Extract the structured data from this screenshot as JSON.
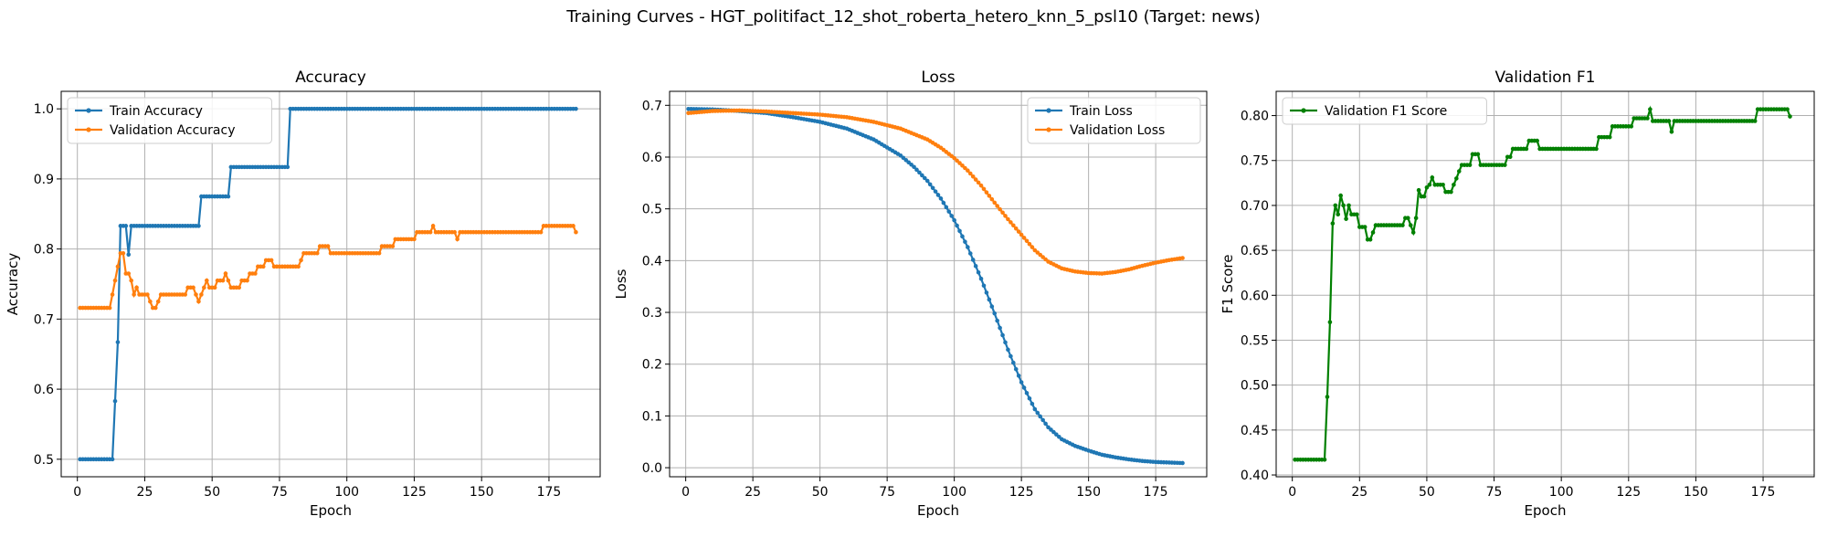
{
  "figure": {
    "title": "Training Curves - HGT_politifact_12_shot_roberta_hetero_knn_5_psl10 (Target: news)"
  },
  "chart_data": [
    {
      "type": "line",
      "title": "Accuracy",
      "xlabel": "Epoch",
      "ylabel": "Accuracy",
      "xlim": [
        -6,
        194
      ],
      "ylim": [
        0.475,
        1.025
      ],
      "xticks": [
        0,
        25,
        50,
        75,
        100,
        125,
        150,
        175
      ],
      "yticks": [
        0.5,
        0.6,
        0.7,
        0.8,
        0.9,
        1.0
      ],
      "ytick_labels": [
        "0.5",
        "0.6",
        "0.7",
        "0.8",
        "0.9",
        "1.0"
      ],
      "grid": true,
      "legend": "upper-left",
      "series": [
        {
          "name": "Train Accuracy",
          "color": "#1f77b4",
          "points": [
            [
              1,
              0.5
            ],
            [
              13,
              0.5
            ],
            [
              14,
              0.583
            ],
            [
              15,
              0.667
            ],
            [
              16,
              0.833
            ],
            [
              18,
              0.833
            ],
            [
              19,
              0.792
            ],
            [
              20,
              0.833
            ],
            [
              45,
              0.833
            ],
            [
              46,
              0.875
            ],
            [
              56,
              0.875
            ],
            [
              57,
              0.917
            ],
            [
              78,
              0.917
            ],
            [
              79,
              1.0
            ],
            [
              185,
              1.0
            ]
          ]
        },
        {
          "name": "Validation Accuracy",
          "color": "#ff7f0e",
          "points": [
            [
              1,
              0.716
            ],
            [
              12,
              0.716
            ],
            [
              13,
              0.735
            ],
            [
              14,
              0.755
            ],
            [
              15,
              0.775
            ],
            [
              16,
              0.794
            ],
            [
              17,
              0.794
            ],
            [
              18,
              0.765
            ],
            [
              19,
              0.765
            ],
            [
              20,
              0.755
            ],
            [
              21,
              0.735
            ],
            [
              22,
              0.745
            ],
            [
              23,
              0.735
            ],
            [
              26,
              0.735
            ],
            [
              27,
              0.725
            ],
            [
              28,
              0.716
            ],
            [
              29,
              0.716
            ],
            [
              30,
              0.725
            ],
            [
              31,
              0.735
            ],
            [
              40,
              0.735
            ],
            [
              41,
              0.745
            ],
            [
              43,
              0.745
            ],
            [
              44,
              0.735
            ],
            [
              45,
              0.725
            ],
            [
              46,
              0.735
            ],
            [
              47,
              0.745
            ],
            [
              48,
              0.755
            ],
            [
              49,
              0.745
            ],
            [
              51,
              0.745
            ],
            [
              52,
              0.755
            ],
            [
              54,
              0.755
            ],
            [
              55,
              0.765
            ],
            [
              56,
              0.755
            ],
            [
              57,
              0.745
            ],
            [
              60,
              0.745
            ],
            [
              61,
              0.755
            ],
            [
              63,
              0.755
            ],
            [
              64,
              0.765
            ],
            [
              66,
              0.765
            ],
            [
              67,
              0.775
            ],
            [
              69,
              0.775
            ],
            [
              70,
              0.784
            ],
            [
              72,
              0.784
            ],
            [
              73,
              0.775
            ],
            [
              82,
              0.775
            ],
            [
              83,
              0.784
            ],
            [
              84,
              0.794
            ],
            [
              89,
              0.794
            ],
            [
              90,
              0.804
            ],
            [
              93,
              0.804
            ],
            [
              94,
              0.794
            ],
            [
              112,
              0.794
            ],
            [
              113,
              0.804
            ],
            [
              117,
              0.804
            ],
            [
              118,
              0.814
            ],
            [
              125,
              0.814
            ],
            [
              126,
              0.824
            ],
            [
              131,
              0.824
            ],
            [
              132,
              0.833
            ],
            [
              133,
              0.824
            ],
            [
              140,
              0.824
            ],
            [
              141,
              0.814
            ],
            [
              142,
              0.824
            ],
            [
              172,
              0.824
            ],
            [
              173,
              0.833
            ],
            [
              184,
              0.833
            ],
            [
              185,
              0.824
            ]
          ]
        }
      ]
    },
    {
      "type": "line",
      "title": "Loss",
      "xlabel": "Epoch",
      "ylabel": "Loss",
      "xlim": [
        -6,
        194
      ],
      "ylim": [
        -0.0175,
        0.727
      ],
      "xticks": [
        0,
        25,
        50,
        75,
        100,
        125,
        150,
        175
      ],
      "yticks": [
        0.0,
        0.1,
        0.2,
        0.3,
        0.4,
        0.5,
        0.6,
        0.7
      ],
      "ytick_labels": [
        "0.0",
        "0.1",
        "0.2",
        "0.3",
        "0.4",
        "0.5",
        "0.6",
        "0.7"
      ],
      "grid": true,
      "legend": "upper-right",
      "series": [
        {
          "name": "Train Loss",
          "color": "#1f77b4",
          "points": [
            [
              1,
              0.693
            ],
            [
              10,
              0.692
            ],
            [
              20,
              0.689
            ],
            [
              30,
              0.685
            ],
            [
              40,
              0.677
            ],
            [
              50,
              0.668
            ],
            [
              60,
              0.655
            ],
            [
              70,
              0.634
            ],
            [
              80,
              0.603
            ],
            [
              85,
              0.581
            ],
            [
              90,
              0.554
            ],
            [
              95,
              0.52
            ],
            [
              100,
              0.478
            ],
            [
              105,
              0.426
            ],
            [
              110,
              0.365
            ],
            [
              115,
              0.298
            ],
            [
              120,
              0.228
            ],
            [
              125,
              0.165
            ],
            [
              130,
              0.113
            ],
            [
              135,
              0.078
            ],
            [
              140,
              0.055
            ],
            [
              145,
              0.042
            ],
            [
              150,
              0.033
            ],
            [
              155,
              0.025
            ],
            [
              160,
              0.02
            ],
            [
              165,
              0.016
            ],
            [
              170,
              0.013
            ],
            [
              175,
              0.011
            ],
            [
              180,
              0.01
            ],
            [
              185,
              0.009
            ]
          ]
        },
        {
          "name": "Validation Loss",
          "color": "#ff7f0e",
          "points": [
            [
              1,
              0.685
            ],
            [
              10,
              0.689
            ],
            [
              20,
              0.69
            ],
            [
              30,
              0.688
            ],
            [
              40,
              0.685
            ],
            [
              50,
              0.682
            ],
            [
              60,
              0.677
            ],
            [
              70,
              0.668
            ],
            [
              80,
              0.655
            ],
            [
              90,
              0.634
            ],
            [
              95,
              0.618
            ],
            [
              100,
              0.598
            ],
            [
              105,
              0.574
            ],
            [
              110,
              0.545
            ],
            [
              115,
              0.512
            ],
            [
              120,
              0.48
            ],
            [
              125,
              0.45
            ],
            [
              130,
              0.42
            ],
            [
              135,
              0.398
            ],
            [
              140,
              0.385
            ],
            [
              145,
              0.379
            ],
            [
              150,
              0.376
            ],
            [
              155,
              0.375
            ],
            [
              160,
              0.378
            ],
            [
              165,
              0.383
            ],
            [
              170,
              0.39
            ],
            [
              175,
              0.396
            ],
            [
              180,
              0.401
            ],
            [
              185,
              0.405
            ]
          ]
        }
      ]
    },
    {
      "type": "line",
      "title": "Validation F1",
      "xlabel": "Epoch",
      "ylabel": "F1 Score",
      "xlim": [
        -6,
        194
      ],
      "ylim": [
        0.398,
        0.827
      ],
      "xticks": [
        0,
        25,
        50,
        75,
        100,
        125,
        150,
        175
      ],
      "yticks": [
        0.4,
        0.45,
        0.5,
        0.55,
        0.6,
        0.65,
        0.7,
        0.75,
        0.8
      ],
      "ytick_labels": [
        "0.40",
        "0.45",
        "0.50",
        "0.55",
        "0.60",
        "0.65",
        "0.70",
        "0.75",
        "0.80"
      ],
      "grid": true,
      "legend": "upper-left",
      "series": [
        {
          "name": "Validation F1 Score",
          "color": "#008000",
          "points": [
            [
              1,
              0.417
            ],
            [
              12,
              0.417
            ],
            [
              13,
              0.487
            ],
            [
              14,
              0.57
            ],
            [
              15,
              0.68
            ],
            [
              16,
              0.7
            ],
            [
              17,
              0.69
            ],
            [
              18,
              0.711
            ],
            [
              19,
              0.7
            ],
            [
              20,
              0.685
            ],
            [
              21,
              0.7
            ],
            [
              22,
              0.69
            ],
            [
              24,
              0.69
            ],
            [
              25,
              0.676
            ],
            [
              27,
              0.676
            ],
            [
              28,
              0.662
            ],
            [
              29,
              0.662
            ],
            [
              30,
              0.67
            ],
            [
              31,
              0.678
            ],
            [
              41,
              0.678
            ],
            [
              42,
              0.686
            ],
            [
              43,
              0.686
            ],
            [
              44,
              0.678
            ],
            [
              45,
              0.67
            ],
            [
              46,
              0.686
            ],
            [
              47,
              0.717
            ],
            [
              48,
              0.71
            ],
            [
              49,
              0.71
            ],
            [
              50,
              0.72
            ],
            [
              51,
              0.723
            ],
            [
              52,
              0.731
            ],
            [
              53,
              0.723
            ],
            [
              56,
              0.723
            ],
            [
              57,
              0.715
            ],
            [
              59,
              0.715
            ],
            [
              60,
              0.723
            ],
            [
              61,
              0.73
            ],
            [
              62,
              0.738
            ],
            [
              63,
              0.745
            ],
            [
              66,
              0.745
            ],
            [
              67,
              0.757
            ],
            [
              69,
              0.757
            ],
            [
              70,
              0.745
            ],
            [
              79,
              0.745
            ],
            [
              80,
              0.754
            ],
            [
              81,
              0.754
            ],
            [
              82,
              0.763
            ],
            [
              87,
              0.763
            ],
            [
              88,
              0.772
            ],
            [
              91,
              0.772
            ],
            [
              92,
              0.763
            ],
            [
              113,
              0.763
            ],
            [
              114,
              0.776
            ],
            [
              118,
              0.776
            ],
            [
              119,
              0.788
            ],
            [
              126,
              0.788
            ],
            [
              127,
              0.797
            ],
            [
              132,
              0.797
            ],
            [
              133,
              0.807
            ],
            [
              134,
              0.794
            ],
            [
              140,
              0.794
            ],
            [
              141,
              0.782
            ],
            [
              142,
              0.794
            ],
            [
              172,
              0.794
            ],
            [
              173,
              0.807
            ],
            [
              184,
              0.807
            ],
            [
              185,
              0.799
            ]
          ]
        }
      ]
    }
  ]
}
